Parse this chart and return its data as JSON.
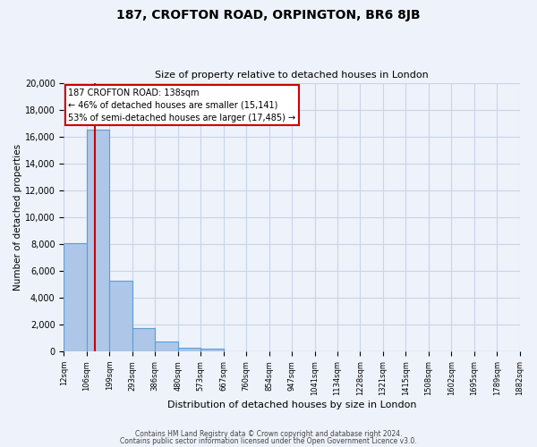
{
  "title": "187, CROFTON ROAD, ORPINGTON, BR6 8JB",
  "subtitle": "Size of property relative to detached houses in London",
  "xlabel": "Distribution of detached houses by size in London",
  "ylabel": "Number of detached properties",
  "bin_labels": [
    "12sqm",
    "106sqm",
    "199sqm",
    "293sqm",
    "386sqm",
    "480sqm",
    "573sqm",
    "667sqm",
    "760sqm",
    "854sqm",
    "947sqm",
    "1041sqm",
    "1134sqm",
    "1228sqm",
    "1321sqm",
    "1415sqm",
    "1508sqm",
    "1602sqm",
    "1695sqm",
    "1789sqm",
    "1882sqm"
  ],
  "bar_values": [
    8050,
    16500,
    5250,
    1750,
    750,
    300,
    200,
    0,
    0,
    0,
    0,
    0,
    0,
    0,
    0,
    0,
    0,
    0,
    0,
    0
  ],
  "bar_color": "#aec6e8",
  "bar_edge_color": "#5a9fd4",
  "background_color": "#eef2fb",
  "grid_color": "#c8d4e8",
  "property_line_x": 138,
  "property_line_color": "#cc0000",
  "annotation_line1": "187 CROFTON ROAD: 138sqm",
  "annotation_line2": "← 46% of detached houses are smaller (15,141)",
  "annotation_line3": "53% of semi-detached houses are larger (17,485) →",
  "annotation_box_color": "#ffffff",
  "annotation_box_edge_color": "#cc0000",
  "ylim": [
    0,
    20000
  ],
  "bin_edges": [
    12,
    106,
    199,
    293,
    386,
    480,
    573,
    667,
    760,
    854,
    947,
    1041,
    1134,
    1228,
    1321,
    1415,
    1508,
    1602,
    1695,
    1789,
    1882
  ],
  "footer_line1": "Contains HM Land Registry data © Crown copyright and database right 2024.",
  "footer_line2": "Contains public sector information licensed under the Open Government Licence v3.0."
}
